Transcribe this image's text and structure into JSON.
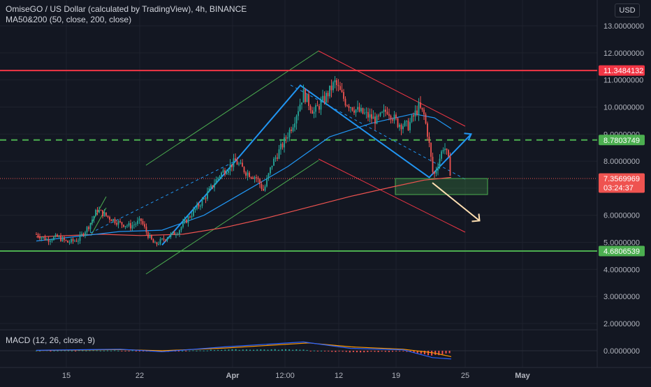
{
  "header": {
    "symbol_line": "OmiseGO / US Dollar (calculated by TradingView), 4h, BINANCE",
    "indicator_line": "MA50&200 (50, close, 200, close)",
    "macd_label": "MACD (12, 26, close, 9)"
  },
  "currency_button": "USD",
  "colors": {
    "background": "#131722",
    "up": "#26a69a",
    "down": "#ef5350",
    "ma50": "#2196f3",
    "ma200": "#ef5350",
    "support": "#4caf50",
    "resistance": "#f23645",
    "pattern": "#2196f3",
    "arrow_down": "#ffe0b2"
  },
  "chart_data": {
    "type": "candlestick",
    "y_axis": {
      "min": 0,
      "max": 13,
      "ticks": [
        "13.0000000",
        "12.0000000",
        "11.0000000",
        "10.0000000",
        "9.0000000",
        "8.0000000",
        "7.0000000",
        "6.0000000",
        "5.0000000",
        "4.0000000",
        "3.0000000",
        "2.0000000"
      ],
      "tick_values": [
        13,
        12,
        11,
        10,
        9,
        8,
        7,
        6,
        5,
        4,
        3,
        2
      ]
    },
    "x_axis": {
      "labels": [
        "15",
        "22",
        "Apr",
        "12:00",
        "12",
        "19",
        "25",
        "May"
      ]
    },
    "price_levels": [
      {
        "label": "11.3484132",
        "value": 11.3484132,
        "style": "solid",
        "color": "#f23645"
      },
      {
        "label": "8.7803749",
        "value": 8.7803749,
        "style": "dashed",
        "color": "#4caf50"
      },
      {
        "label": "7.3569969",
        "value": 7.3569969,
        "style": "dotted",
        "color": "#ef5350",
        "countdown": "03:24:37"
      },
      {
        "label": "4.6806539",
        "value": 4.6806539,
        "style": "solid",
        "color": "#4caf50"
      }
    ],
    "price_path": [
      {
        "day": 12,
        "value": 5.3
      },
      {
        "day": 13,
        "value": 5.1
      },
      {
        "day": 14,
        "value": 5.2
      },
      {
        "day": 15,
        "value": 5.0
      },
      {
        "day": 16,
        "value": 5.1
      },
      {
        "day": 17,
        "value": 5.6
      },
      {
        "day": 17.8,
        "value": 6.2
      },
      {
        "day": 19,
        "value": 5.9
      },
      {
        "day": 20,
        "value": 5.7
      },
      {
        "day": 21,
        "value": 5.6
      },
      {
        "day": 22,
        "value": 5.8
      },
      {
        "day": 22.6,
        "value": 5.3
      },
      {
        "day": 23.3,
        "value": 4.9
      },
      {
        "day": 24.5,
        "value": 5.2
      },
      {
        "day": 25.5,
        "value": 5.4
      },
      {
        "day": 26.5,
        "value": 5.9
      },
      {
        "day": 28,
        "value": 6.6
      },
      {
        "day": 29.5,
        "value": 7.5
      },
      {
        "day": 31,
        "value": 8.0
      },
      {
        "day": 32,
        "value": 7.6
      },
      {
        "day": 33,
        "value": 7.4
      },
      {
        "day": 33.7,
        "value": 6.9
      },
      {
        "day": 34.5,
        "value": 7.9
      },
      {
        "day": 35.5,
        "value": 8.6
      },
      {
        "day": 36.5,
        "value": 9.4
      },
      {
        "day": 37.5,
        "value": 10.5
      },
      {
        "day": 38.5,
        "value": 9.8
      },
      {
        "day": 39.5,
        "value": 10.3
      },
      {
        "day": 40.5,
        "value": 10.9
      },
      {
        "day": 41.5,
        "value": 10.2
      },
      {
        "day": 42.5,
        "value": 9.9
      },
      {
        "day": 43.5,
        "value": 9.7
      },
      {
        "day": 44.5,
        "value": 9.5
      },
      {
        "day": 45.5,
        "value": 9.9
      },
      {
        "day": 46.5,
        "value": 9.4
      },
      {
        "day": 47.5,
        "value": 9.3
      },
      {
        "day": 48.5,
        "value": 10.0
      },
      {
        "day": 49,
        "value": 9.7
      },
      {
        "day": 49.4,
        "value": 8.9
      },
      {
        "day": 49.9,
        "value": 7.4
      },
      {
        "day": 50.4,
        "value": 8.0
      },
      {
        "day": 50.9,
        "value": 8.6
      },
      {
        "day": 51.3,
        "value": 8.1
      },
      {
        "day": 51.6,
        "value": 7.36
      }
    ],
    "ma50_path": [
      {
        "day": 12,
        "value": 5.05
      },
      {
        "day": 20,
        "value": 5.4
      },
      {
        "day": 24,
        "value": 5.45
      },
      {
        "day": 28,
        "value": 6.0
      },
      {
        "day": 32,
        "value": 6.9
      },
      {
        "day": 36,
        "value": 7.8
      },
      {
        "day": 40,
        "value": 8.9
      },
      {
        "day": 44,
        "value": 9.4
      },
      {
        "day": 48,
        "value": 9.75
      },
      {
        "day": 50,
        "value": 9.6
      },
      {
        "day": 51.6,
        "value": 9.2
      }
    ],
    "ma200_path": [
      {
        "day": 12,
        "value": 5.2
      },
      {
        "day": 18,
        "value": 5.3
      },
      {
        "day": 22,
        "value": 5.25
      },
      {
        "day": 26,
        "value": 5.3
      },
      {
        "day": 30,
        "value": 5.55
      },
      {
        "day": 34,
        "value": 5.9
      },
      {
        "day": 38,
        "value": 6.3
      },
      {
        "day": 42,
        "value": 6.7
      },
      {
        "day": 46,
        "value": 7.05
      },
      {
        "day": 49,
        "value": 7.3
      },
      {
        "day": 51.6,
        "value": 7.4
      }
    ],
    "zigzag_pattern": [
      {
        "day": 24,
        "value": 4.9
      },
      {
        "day": 31,
        "value": 8.0
      },
      {
        "day": 37.2,
        "value": 10.8
      },
      {
        "day": 49.5,
        "value": 7.4
      },
      {
        "day": 53.5,
        "value": 9.0
      }
    ],
    "macd": {
      "zero_label": "0.0000000",
      "macd_path": [
        {
          "day": 12,
          "value": 0.02
        },
        {
          "day": 20,
          "value": 0.08
        },
        {
          "day": 24,
          "value": -0.05
        },
        {
          "day": 30,
          "value": 0.2
        },
        {
          "day": 37.5,
          "value": 0.45
        },
        {
          "day": 42,
          "value": 0.12
        },
        {
          "day": 47,
          "value": 0.05
        },
        {
          "day": 49.8,
          "value": -0.35
        },
        {
          "day": 51.6,
          "value": -0.42
        }
      ],
      "signal_path": [
        {
          "day": 12,
          "value": 0.01
        },
        {
          "day": 20,
          "value": 0.06
        },
        {
          "day": 24,
          "value": 0.0
        },
        {
          "day": 30,
          "value": 0.14
        },
        {
          "day": 38,
          "value": 0.4
        },
        {
          "day": 42,
          "value": 0.2
        },
        {
          "day": 47,
          "value": 0.08
        },
        {
          "day": 49.8,
          "value": -0.1
        },
        {
          "day": 51.6,
          "value": -0.3
        }
      ]
    }
  }
}
